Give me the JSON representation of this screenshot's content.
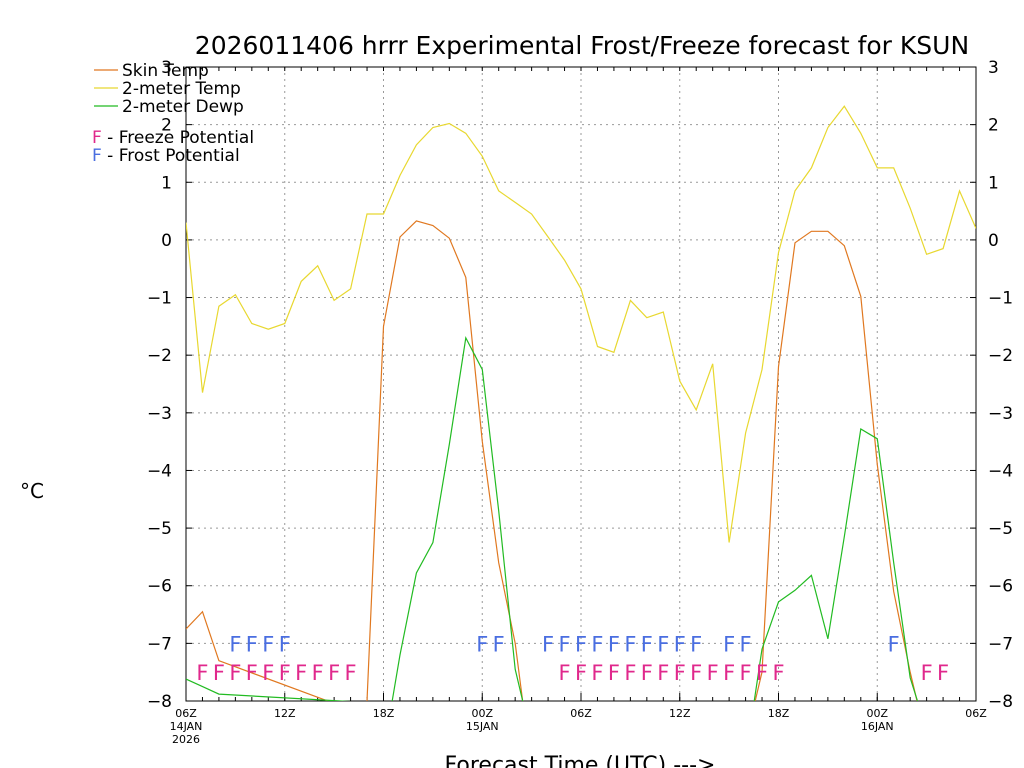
{
  "chart_data": {
    "type": "line",
    "title": "2026011406 hrrr Experimental Frost/Freeze forecast for KSUN",
    "xlabel": "Forecast Time (UTC) --->",
    "ylabel": "°C",
    "ylim": [
      -8,
      3
    ],
    "yticks": [
      -8,
      -7,
      -6,
      -5,
      -4,
      -3,
      -2,
      -1,
      0,
      1,
      2,
      3
    ],
    "xlim": [
      0,
      48
    ],
    "x_tick_positions": [
      0,
      6,
      12,
      18,
      24,
      30,
      36,
      42,
      48
    ],
    "x_tick_labels": [
      {
        "label": "06Z",
        "sub1": "14JAN",
        "sub2": "2026"
      },
      {
        "label": "12Z",
        "sub1": "",
        "sub2": ""
      },
      {
        "label": "18Z",
        "sub1": "",
        "sub2": ""
      },
      {
        "label": "00Z",
        "sub1": "15JAN",
        "sub2": ""
      },
      {
        "label": "06Z",
        "sub1": "",
        "sub2": ""
      },
      {
        "label": "12Z",
        "sub1": "",
        "sub2": ""
      },
      {
        "label": "18Z",
        "sub1": "",
        "sub2": ""
      },
      {
        "label": "00Z",
        "sub1": "16JAN",
        "sub2": ""
      },
      {
        "label": "06Z",
        "sub1": "",
        "sub2": ""
      }
    ],
    "legend": [
      {
        "name": "Skin Temp",
        "color": "#e07820"
      },
      {
        "name": "2-meter Temp",
        "color": "#e8d830"
      },
      {
        "name": "2-meter Dewp",
        "color": "#22bb22"
      }
    ],
    "flag_legend": [
      {
        "symbol": "F",
        "text": " - Freeze Potential",
        "color": "#e0288c"
      },
      {
        "symbol": "F",
        "text": " - Frost Potential",
        "color": "#4a6ee0"
      }
    ],
    "series": [
      {
        "name": "Skin Temp",
        "color": "#e07820",
        "x": [
          0,
          1,
          2,
          10.5,
          11,
          12,
          13,
          14,
          15,
          16,
          17,
          18,
          19,
          20,
          20.5,
          34.5,
          35,
          36,
          37,
          38,
          39,
          40,
          41,
          42,
          43,
          44,
          44.5
        ],
        "y": [
          -6.75,
          -6.45,
          -7.3,
          -8.2,
          -8.0,
          -1.5,
          0.05,
          0.33,
          0.25,
          0.03,
          -0.65,
          -3.5,
          -5.6,
          -7.0,
          -8.1,
          -8.1,
          -7.5,
          -2.2,
          -0.05,
          0.15,
          0.15,
          -0.1,
          -0.98,
          -3.9,
          -6.1,
          -7.5,
          -8.1
        ]
      },
      {
        "name": "2-meter Temp",
        "color": "#e8d830",
        "x": [
          0,
          1,
          2,
          3,
          4,
          5,
          6,
          7,
          8,
          9,
          10,
          11,
          12,
          13,
          14,
          15,
          16,
          17,
          18,
          19,
          20,
          21,
          22,
          23,
          24,
          25,
          26,
          27,
          28,
          29,
          30,
          31,
          32,
          33,
          34,
          35,
          36,
          37,
          38,
          39,
          40,
          41,
          42,
          43,
          44,
          45,
          46,
          47,
          48
        ],
        "y": [
          0.3,
          -2.65,
          -1.15,
          -0.95,
          -1.45,
          -1.55,
          -1.45,
          -0.72,
          -0.45,
          -1.05,
          -0.85,
          0.45,
          0.45,
          1.12,
          1.65,
          1.95,
          2.02,
          1.85,
          1.45,
          0.85,
          0.65,
          0.45,
          0.05,
          -0.35,
          -0.85,
          -1.85,
          -1.95,
          -1.05,
          -1.35,
          -1.25,
          -2.45,
          -2.95,
          -2.15,
          -5.25,
          -3.35,
          -2.25,
          -0.22,
          0.85,
          1.25,
          1.95,
          2.32,
          1.85,
          1.25,
          1.25,
          0.55,
          -0.25,
          -0.15,
          0.85,
          0.2
        ]
      },
      {
        "name": "2-meter Dewp",
        "color": "#22bb22",
        "x": [
          0,
          1,
          2,
          12.5,
          13,
          14,
          15,
          16,
          17,
          18,
          19,
          20,
          20.5,
          34.5,
          35,
          36,
          37,
          38,
          39,
          40,
          41,
          42,
          43,
          44,
          44.5
        ],
        "y": [
          -7.62,
          -7.75,
          -7.88,
          -8.05,
          -7.2,
          -5.78,
          -5.25,
          -3.55,
          -1.7,
          -2.25,
          -4.7,
          -7.45,
          -8.05,
          -8.05,
          -7.1,
          -6.28,
          -6.08,
          -5.82,
          -6.92,
          -5.15,
          -3.28,
          -3.45,
          -5.6,
          -7.6,
          -8.05
        ]
      }
    ],
    "frost_flags": {
      "color": "#4a6ee0",
      "text": "F",
      "x": [
        3,
        4,
        5,
        6,
        18,
        19,
        22,
        23,
        24,
        25,
        26,
        27,
        28,
        29,
        30,
        31,
        33,
        34,
        43
      ]
    },
    "freeze_flags": {
      "color": "#e0288c",
      "text": "F",
      "x": [
        1,
        2,
        3,
        4,
        5,
        6,
        7,
        8,
        9,
        10,
        23,
        24,
        25,
        26,
        27,
        28,
        29,
        30,
        31,
        32,
        33,
        34,
        35,
        36,
        45,
        46
      ]
    }
  }
}
